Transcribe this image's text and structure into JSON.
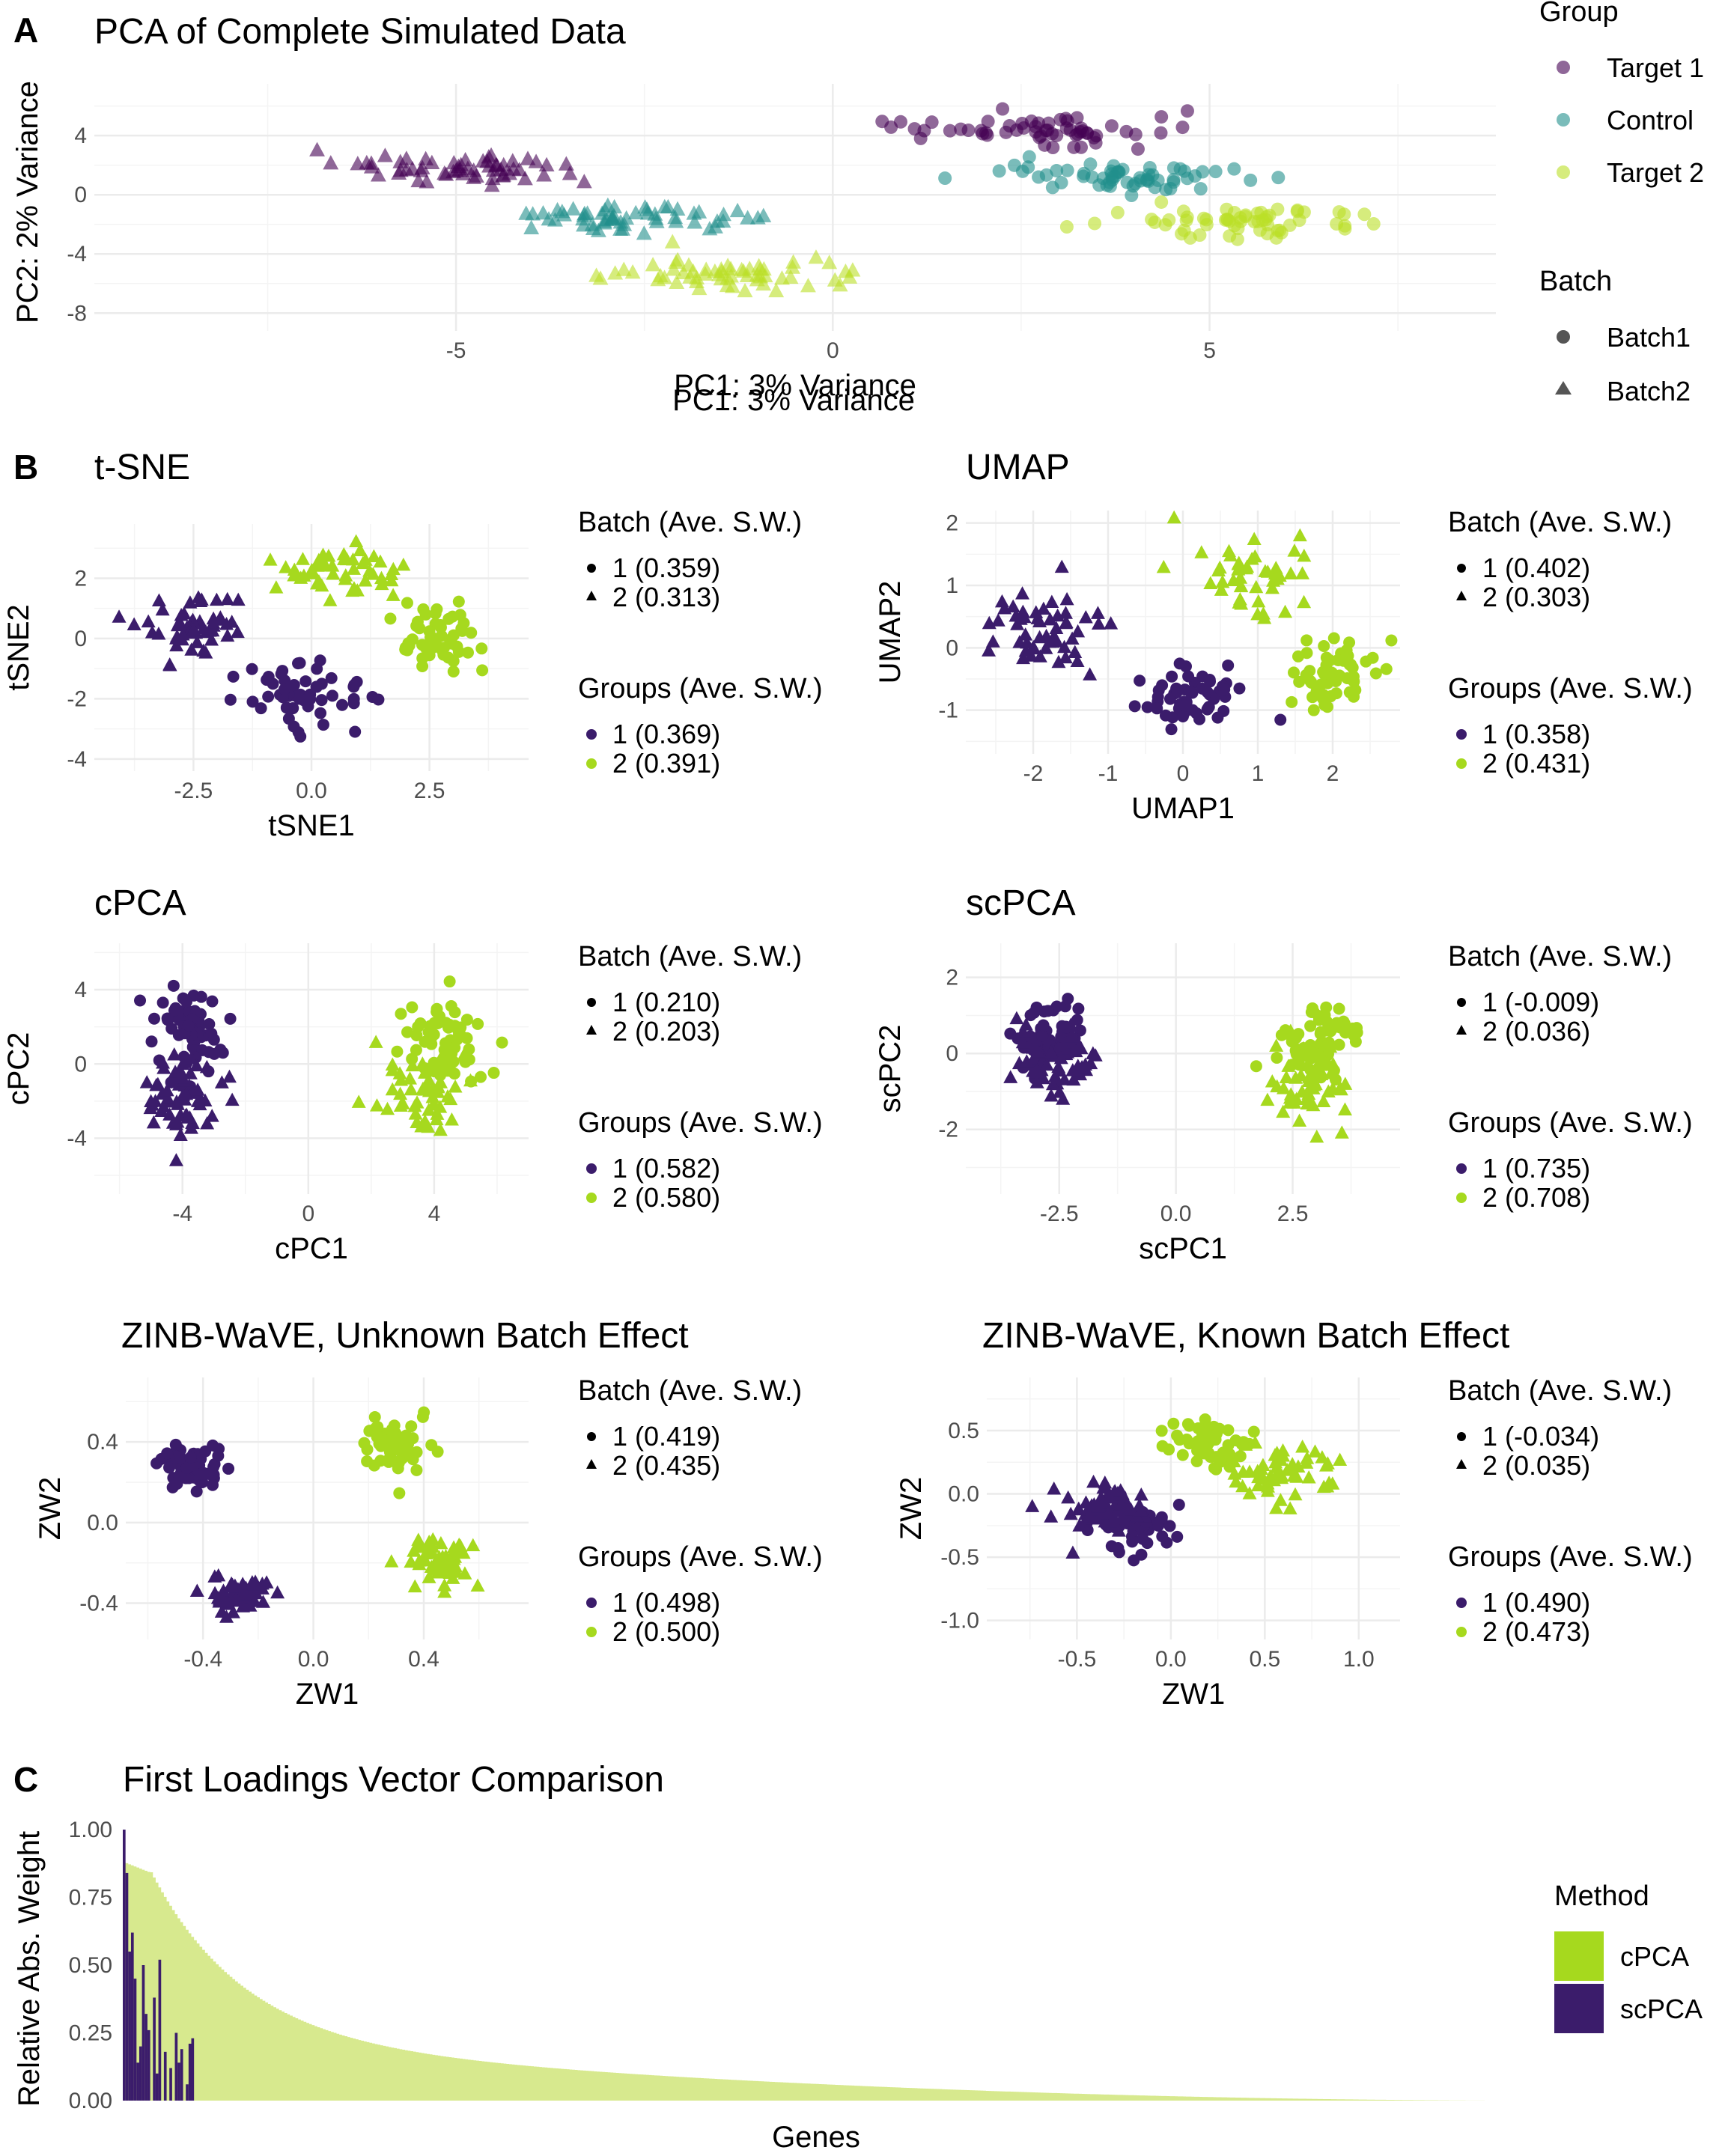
{
  "colors": {
    "target1": "#440154",
    "control": "#21908C",
    "target2": "#BBDF27",
    "group1": "#3B1C6B",
    "group2": "#A6D91E",
    "cpca_bar": "#D7E98E",
    "scpca_bar": "#3B1C6B"
  },
  "panelA": {
    "letter": "A",
    "title": "PCA of Complete Simulated Data",
    "xlabel": "PC1: 3% Variance",
    "ylabel": "PC2: 2% Variance",
    "legend_group_title": "Group",
    "legend_group_items": [
      "Target 1",
      "Control",
      "Target 2"
    ],
    "legend_batch_title": "Batch",
    "legend_batch_items": [
      "Batch1",
      "Batch2"
    ]
  },
  "panelB": {
    "letter": "B"
  },
  "panelC": {
    "letter": "C",
    "title": "First Loadings Vector Comparison",
    "xlabel": "Genes",
    "ylabel": "Relative Abs. Weight",
    "legend_title": "Method",
    "legend_items": [
      "cPCA",
      "scPCA"
    ]
  },
  "chart_data": [
    {
      "id": "pca",
      "type": "scatter",
      "title": "PCA of Complete Simulated Data",
      "xlabel": "PC1: 3% Variance",
      "ylabel": "PC2: 2% Variance",
      "xlim": [
        -9.8,
        8.8
      ],
      "ylim": [
        -9.2,
        7.5
      ],
      "xticks": [
        -5,
        0,
        5
      ],
      "yticks": [
        -8,
        -4,
        0,
        4
      ],
      "grid": true,
      "legend": "right",
      "series": [
        {
          "name": "Target 1",
          "marker": "circle",
          "batch": "Batch1",
          "center": [
            2.5,
            4.2
          ],
          "spread": [
            1.6,
            1.1
          ],
          "n": 60,
          "seed": 1
        },
        {
          "name": "Control",
          "marker": "circle",
          "batch": "Batch1",
          "center": [
            3.9,
            1.2
          ],
          "spread": [
            1.5,
            0.9
          ],
          "n": 60,
          "seed": 2
        },
        {
          "name": "Target 2",
          "marker": "circle",
          "batch": "Batch1",
          "center": [
            5.4,
            -1.8
          ],
          "spread": [
            1.4,
            1.1
          ],
          "n": 60,
          "seed": 3
        },
        {
          "name": "Target 1",
          "marker": "triangle",
          "batch": "Batch2",
          "center": [
            -4.9,
            1.8
          ],
          "spread": [
            1.4,
            0.9
          ],
          "n": 60,
          "seed": 4
        },
        {
          "name": "Control",
          "marker": "triangle",
          "batch": "Batch2",
          "center": [
            -2.8,
            -1.6
          ],
          "spread": [
            1.4,
            0.9
          ],
          "n": 60,
          "seed": 5
        },
        {
          "name": "Target 2",
          "marker": "triangle",
          "batch": "Batch2",
          "center": [
            -1.4,
            -5.3
          ],
          "spread": [
            1.4,
            1.0
          ],
          "n": 60,
          "seed": 6
        }
      ]
    },
    {
      "id": "tsne",
      "type": "scatter",
      "title": "t-SNE",
      "xlabel": "tSNE1",
      "ylabel": "tSNE2",
      "xlim": [
        -4.6,
        4.6
      ],
      "ylim": [
        -4.4,
        3.8
      ],
      "xticks": [
        -2.5,
        0.0,
        2.5
      ],
      "xtick_labels": [
        "-2.5",
        "0.0",
        "2.5"
      ],
      "yticks": [
        -4,
        -2,
        0,
        2
      ],
      "legend_batch": {
        "title": "Batch (Ave. S.W.)",
        "items": [
          "1 (0.359)",
          "2 (0.313)"
        ]
      },
      "legend_groups": {
        "title": "Groups (Ave. S.W.)",
        "items": [
          "1 (0.369)",
          "2 (0.391)"
        ]
      },
      "series": [
        {
          "group": 1,
          "marker": "triangle",
          "center": [
            -2.5,
            0.3
          ],
          "spread": [
            1.0,
            1.0
          ],
          "n": 55,
          "seed": 11
        },
        {
          "group": 1,
          "marker": "circle",
          "center": [
            -0.2,
            -1.8
          ],
          "spread": [
            1.1,
            1.0
          ],
          "n": 55,
          "seed": 12
        },
        {
          "group": 2,
          "marker": "triangle",
          "center": [
            0.6,
            2.3
          ],
          "spread": [
            1.1,
            0.8
          ],
          "n": 50,
          "seed": 13
        },
        {
          "group": 2,
          "marker": "circle",
          "center": [
            2.8,
            0.0
          ],
          "spread": [
            0.9,
            1.1
          ],
          "n": 55,
          "seed": 14
        }
      ]
    },
    {
      "id": "umap",
      "type": "scatter",
      "title": "UMAP",
      "xlabel": "UMAP1",
      "ylabel": "UMAP2",
      "xlim": [
        -2.9,
        2.9
      ],
      "ylim": [
        -1.7,
        2.2
      ],
      "xticks": [
        -2,
        -1,
        0,
        1,
        2
      ],
      "yticks": [
        -1,
        0,
        1,
        2
      ],
      "legend_batch": {
        "title": "Batch (Ave. S.W.)",
        "items": [
          "1 (0.402)",
          "2 (0.303)"
        ]
      },
      "legend_groups": {
        "title": "Groups (Ave. S.W.)",
        "items": [
          "1 (0.358)",
          "2 (0.431)"
        ]
      },
      "series": [
        {
          "group": 1,
          "marker": "triangle",
          "center": [
            -1.8,
            0.3
          ],
          "spread": [
            0.7,
            0.6
          ],
          "n": 55,
          "seed": 21
        },
        {
          "group": 1,
          "marker": "circle",
          "center": [
            0.1,
            -0.8
          ],
          "spread": [
            0.7,
            0.4
          ],
          "n": 55,
          "seed": 22
        },
        {
          "group": 2,
          "marker": "triangle",
          "center": [
            0.9,
            1.2
          ],
          "spread": [
            0.7,
            0.6
          ],
          "n": 45,
          "seed": 23
        },
        {
          "group": 2,
          "marker": "circle",
          "center": [
            2.0,
            -0.4
          ],
          "spread": [
            0.6,
            0.6
          ],
          "n": 55,
          "seed": 24
        }
      ]
    },
    {
      "id": "cpca",
      "type": "scatter",
      "title": "cPCA",
      "xlabel": "cPC1",
      "ylabel": "cPC2",
      "xlim": [
        -6.8,
        7.0
      ],
      "ylim": [
        -7.0,
        6.5
      ],
      "xticks": [
        -4,
        0,
        4
      ],
      "yticks": [
        -4,
        0,
        4
      ],
      "legend_batch": {
        "title": "Batch (Ave. S.W.)",
        "items": [
          "1 (0.210)",
          "2 (0.203)"
        ]
      },
      "legend_groups": {
        "title": "Groups (Ave. S.W.)",
        "items": [
          "1 (0.582)",
          "2 (0.580)"
        ]
      },
      "series": [
        {
          "group": 1,
          "marker": "circle",
          "center": [
            -3.7,
            1.8
          ],
          "spread": [
            1.0,
            2.0
          ],
          "n": 60,
          "seed": 31
        },
        {
          "group": 1,
          "marker": "triangle",
          "center": [
            -4.0,
            -1.8
          ],
          "spread": [
            1.2,
            2.0
          ],
          "n": 60,
          "seed": 32
        },
        {
          "group": 2,
          "marker": "circle",
          "center": [
            4.2,
            1.2
          ],
          "spread": [
            1.2,
            2.0
          ],
          "n": 60,
          "seed": 33
        },
        {
          "group": 2,
          "marker": "triangle",
          "center": [
            3.8,
            -1.6
          ],
          "spread": [
            1.3,
            2.2
          ],
          "n": 60,
          "seed": 34
        }
      ]
    },
    {
      "id": "scpca",
      "type": "scatter",
      "title": "scPCA",
      "xlabel": "scPC1",
      "ylabel": "scPC2",
      "xlim": [
        -4.5,
        4.8
      ],
      "ylim": [
        -3.7,
        2.9
      ],
      "xticks": [
        -2.5,
        0.0,
        2.5
      ],
      "xtick_labels": [
        "-2.5",
        "0.0",
        "2.5"
      ],
      "yticks": [
        -2,
        0,
        2
      ],
      "legend_batch": {
        "title": "Batch (Ave. S.W.)",
        "items": [
          "1 (-0.009)",
          "2 (0.036)"
        ]
      },
      "legend_groups": {
        "title": "Groups (Ave. S.W.)",
        "items": [
          "1 (0.735)",
          "2 (0.708)"
        ]
      },
      "series": [
        {
          "group": 1,
          "marker": "circle",
          "center": [
            -2.7,
            0.4
          ],
          "spread": [
            0.7,
            0.9
          ],
          "n": 60,
          "seed": 41
        },
        {
          "group": 1,
          "marker": "triangle",
          "center": [
            -2.6,
            -0.3
          ],
          "spread": [
            0.8,
            0.8
          ],
          "n": 60,
          "seed": 42
        },
        {
          "group": 2,
          "marker": "circle",
          "center": [
            3.0,
            0.3
          ],
          "spread": [
            0.8,
            0.8
          ],
          "n": 60,
          "seed": 43
        },
        {
          "group": 2,
          "marker": "triangle",
          "center": [
            2.9,
            -0.6
          ],
          "spread": [
            0.8,
            1.0
          ],
          "n": 60,
          "seed": 44
        }
      ]
    },
    {
      "id": "zinb_unknown",
      "type": "scatter",
      "title": "ZINB-WaVE, Unknown Batch Effect",
      "xlabel": "ZW1",
      "ylabel": "ZW2",
      "xlim": [
        -0.68,
        0.78
      ],
      "ylim": [
        -0.58,
        0.72
      ],
      "xticks": [
        -0.4,
        0.0,
        0.4
      ],
      "xtick_labels": [
        "-0.4",
        "0.0",
        "0.4"
      ],
      "yticks": [
        -0.4,
        0.0,
        0.4
      ],
      "ytick_labels": [
        "-0.4",
        "0.0",
        "0.4"
      ],
      "legend_batch": {
        "title": "Batch (Ave. S.W.)",
        "items": [
          "1 (0.419)",
          "2 (0.435)"
        ]
      },
      "legend_groups": {
        "title": "Groups (Ave. S.W.)",
        "items": [
          "1 (0.498)",
          "2 (0.500)"
        ]
      },
      "series": [
        {
          "group": 1,
          "marker": "circle",
          "center": [
            -0.45,
            0.28
          ],
          "spread": [
            0.1,
            0.09
          ],
          "n": 55,
          "seed": 51
        },
        {
          "group": 1,
          "marker": "triangle",
          "center": [
            -0.27,
            -0.37
          ],
          "spread": [
            0.09,
            0.08
          ],
          "n": 55,
          "seed": 52
        },
        {
          "group": 2,
          "marker": "circle",
          "center": [
            0.3,
            0.38
          ],
          "spread": [
            0.1,
            0.12
          ],
          "n": 55,
          "seed": 53
        },
        {
          "group": 2,
          "marker": "triangle",
          "center": [
            0.45,
            -0.2
          ],
          "spread": [
            0.12,
            0.12
          ],
          "n": 55,
          "seed": 54
        }
      ]
    },
    {
      "id": "zinb_known",
      "type": "scatter",
      "title": "ZINB-WaVE, Known Batch Effect",
      "xlabel": "ZW1",
      "ylabel": "ZW2",
      "xlim": [
        -0.98,
        1.22
      ],
      "ylim": [
        -1.15,
        0.92
      ],
      "xticks": [
        -0.5,
        0.0,
        0.5,
        1.0
      ],
      "xtick_labels": [
        "-0.5",
        "0.0",
        "0.5",
        "1.0"
      ],
      "yticks": [
        -1.0,
        -0.5,
        0.0,
        0.5
      ],
      "ytick_labels": [
        "-1.0",
        "-0.5",
        "0.0",
        "0.5"
      ],
      "legend_batch": {
        "title": "Batch (Ave. S.W.)",
        "items": [
          "1 (-0.034)",
          "2 (0.035)"
        ]
      },
      "legend_groups": {
        "title": "Groups (Ave. S.W.)",
        "items": [
          "1 (0.490)",
          "2 (0.473)"
        ]
      },
      "series": [
        {
          "group": 1,
          "marker": "circle",
          "center": [
            -0.2,
            -0.25
          ],
          "spread": [
            0.25,
            0.2
          ],
          "n": 55,
          "seed": 61
        },
        {
          "group": 1,
          "marker": "triangle",
          "center": [
            -0.35,
            -0.1
          ],
          "spread": [
            0.25,
            0.18
          ],
          "n": 55,
          "seed": 62
        },
        {
          "group": 2,
          "marker": "circle",
          "center": [
            0.2,
            0.4
          ],
          "spread": [
            0.25,
            0.18
          ],
          "n": 55,
          "seed": 63
        },
        {
          "group": 2,
          "marker": "triangle",
          "center": [
            0.55,
            0.15
          ],
          "spread": [
            0.3,
            0.2
          ],
          "n": 55,
          "seed": 64
        }
      ]
    },
    {
      "id": "loadings",
      "type": "bar",
      "title": "First Loadings Vector Comparison",
      "xlabel": "Genes",
      "ylabel": "Relative Abs. Weight",
      "ylim": [
        0,
        1.0
      ],
      "yticks": [
        0.0,
        0.25,
        0.5,
        0.75,
        1.0
      ],
      "ytick_labels": [
        "0.00",
        "0.25",
        "0.50",
        "0.75",
        "1.00"
      ],
      "legend": "right",
      "series": [
        {
          "name": "cPCA",
          "n_genes": 500,
          "decay": "sorted descending",
          "max": 0.88,
          "min": 0.0
        },
        {
          "name": "scPCA",
          "values_sparse": [
            [
              0,
              1.0
            ],
            [
              1,
              0.84
            ],
            [
              2,
              0.55
            ],
            [
              3,
              0.62
            ],
            [
              4,
              0.45
            ],
            [
              5,
              0.14
            ],
            [
              6,
              0.2
            ],
            [
              7,
              0.5
            ],
            [
              8,
              0.32
            ],
            [
              9,
              0.26
            ],
            [
              11,
              0.38
            ],
            [
              12,
              0.1
            ],
            [
              13,
              0.52
            ],
            [
              15,
              0.18
            ],
            [
              17,
              0.12
            ],
            [
              19,
              0.25
            ],
            [
              20,
              0.14
            ],
            [
              21,
              0.19
            ],
            [
              23,
              0.06
            ],
            [
              24,
              0.21
            ],
            [
              25,
              0.23
            ]
          ]
        }
      ]
    }
  ]
}
